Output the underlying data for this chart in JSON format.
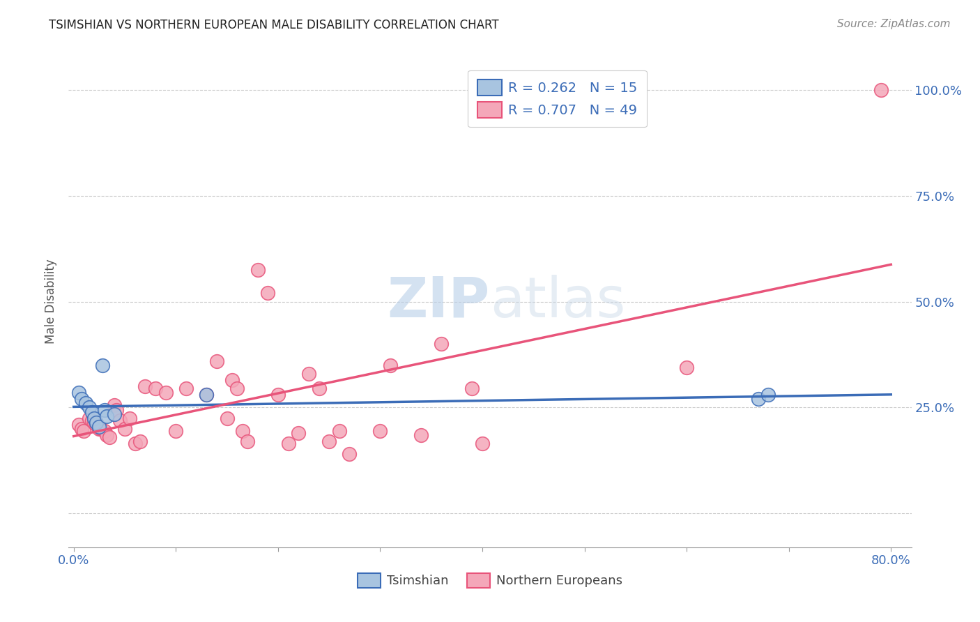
{
  "title": "TSIMSHIAN VS NORTHERN EUROPEAN MALE DISABILITY CORRELATION CHART",
  "source": "Source: ZipAtlas.com",
  "xlabel_tsimshian": "Tsimshian",
  "xlabel_northern": "Northern Europeans",
  "ylabel": "Male Disability",
  "xmin": 0.0,
  "xmax": 0.8,
  "ymin": -0.08,
  "ymax": 1.08,
  "tsimshian_R": 0.262,
  "tsimshian_N": 15,
  "northern_R": 0.707,
  "northern_N": 49,
  "tsimshian_color": "#a8c4e0",
  "tsimshian_line_color": "#3b6cb7",
  "northern_color": "#f4a7b9",
  "northern_line_color": "#e8547a",
  "tsimshian_x": [
    0.005,
    0.008,
    0.012,
    0.015,
    0.018,
    0.02,
    0.022,
    0.025,
    0.028,
    0.03,
    0.032,
    0.04,
    0.13,
    0.67,
    0.68
  ],
  "tsimshian_y": [
    0.285,
    0.27,
    0.26,
    0.25,
    0.24,
    0.225,
    0.215,
    0.205,
    0.35,
    0.245,
    0.23,
    0.235,
    0.28,
    0.27,
    0.28
  ],
  "northern_x": [
    0.005,
    0.008,
    0.01,
    0.015,
    0.018,
    0.02,
    0.022,
    0.025,
    0.027,
    0.03,
    0.032,
    0.035,
    0.04,
    0.042,
    0.045,
    0.05,
    0.055,
    0.06,
    0.065,
    0.07,
    0.08,
    0.09,
    0.1,
    0.11,
    0.13,
    0.14,
    0.15,
    0.155,
    0.16,
    0.165,
    0.17,
    0.18,
    0.19,
    0.2,
    0.21,
    0.22,
    0.23,
    0.24,
    0.25,
    0.26,
    0.27,
    0.3,
    0.31,
    0.34,
    0.36,
    0.39,
    0.4,
    0.6,
    0.79
  ],
  "northern_y": [
    0.21,
    0.2,
    0.195,
    0.225,
    0.22,
    0.215,
    0.21,
    0.2,
    0.2,
    0.195,
    0.185,
    0.18,
    0.255,
    0.245,
    0.22,
    0.2,
    0.225,
    0.165,
    0.17,
    0.3,
    0.295,
    0.285,
    0.195,
    0.295,
    0.28,
    0.36,
    0.225,
    0.315,
    0.295,
    0.195,
    0.17,
    0.575,
    0.52,
    0.28,
    0.165,
    0.19,
    0.33,
    0.295,
    0.17,
    0.195,
    0.14,
    0.195,
    0.35,
    0.185,
    0.4,
    0.295,
    0.165,
    0.345,
    1.0
  ]
}
